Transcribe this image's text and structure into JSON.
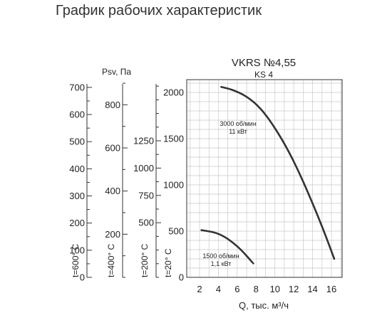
{
  "page": {
    "title": "График рабочих характеристик"
  },
  "chart_data": {
    "type": "line",
    "title": "VKRS №4,55",
    "subtitle": "KS 4",
    "xlabel": "Q, тыс. м³/ч",
    "ylabel": "Psv, Па",
    "x_ticks": [
      2,
      4,
      6,
      8,
      10,
      12,
      14,
      16
    ],
    "xlim": [
      1,
      17
    ],
    "y_ticks": [
      0,
      500,
      1000,
      1500,
      2000
    ],
    "ylim": [
      0,
      2100
    ],
    "grid": true,
    "extra_axes": [
      {
        "label": "t=600° C",
        "ticks": [
          0,
          100,
          200,
          300,
          400,
          500,
          600,
          700
        ]
      },
      {
        "label": "t=400° C",
        "ticks": [
          200,
          400,
          600,
          800
        ]
      },
      {
        "label": "t=200° C",
        "ticks": [
          500,
          750,
          1000,
          1250
        ]
      },
      {
        "label": "t=20° C",
        "ticks": [
          0,
          500,
          1000,
          1500,
          2000
        ]
      }
    ],
    "series": [
      {
        "name": "3000 об/мин\n11 кВт",
        "annotation": [
          "3000 об/мин",
          "11 кВт"
        ],
        "x": [
          4.3,
          5.5,
          7.0,
          8.5,
          10.0,
          11.5,
          13.0,
          14.5,
          15.5,
          16.3
        ],
        "y": [
          2060,
          2030,
          1960,
          1830,
          1620,
          1360,
          1040,
          680,
          420,
          200
        ]
      },
      {
        "name": "1500 об/мин\n1,1 кВт",
        "annotation": [
          "1500 об/мин",
          "1,1 кВт"
        ],
        "x": [
          2.2,
          3.5,
          4.5,
          5.5,
          6.5,
          7.7
        ],
        "y": [
          510,
          490,
          450,
          380,
          290,
          150
        ]
      }
    ]
  }
}
